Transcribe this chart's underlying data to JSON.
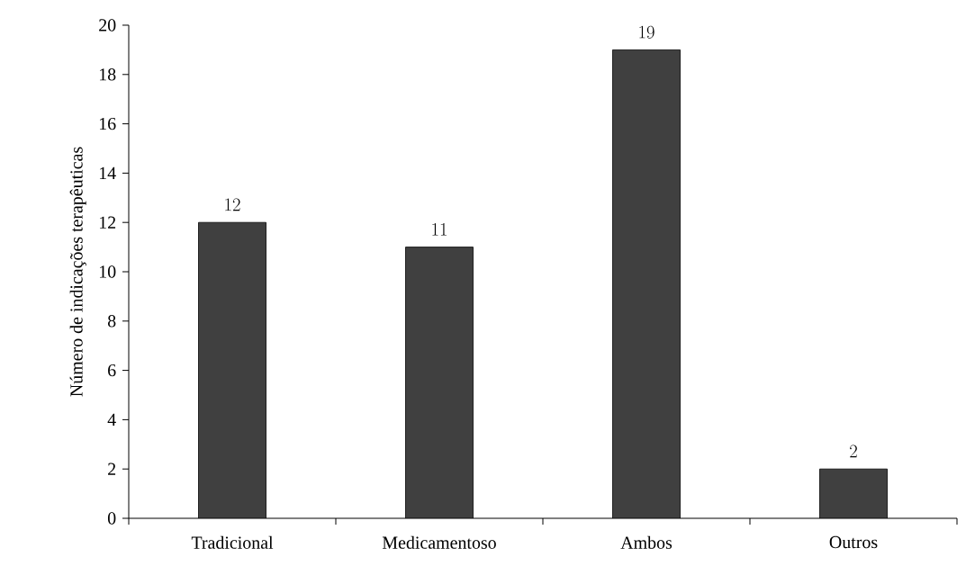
{
  "chart_data": {
    "type": "bar",
    "ylabel": "Número de indicações terapêuticas",
    "categories": [
      "Tradicional",
      "Medicamentoso",
      "Ambos",
      "Outros"
    ],
    "values": [
      12,
      11,
      19,
      2
    ],
    "color": "#404040",
    "ylim": [
      0,
      20
    ],
    "yticks": [
      0,
      2,
      4,
      6,
      8,
      10,
      12,
      14,
      16,
      18,
      20
    ],
    "data_labels": true,
    "grid": false
  }
}
